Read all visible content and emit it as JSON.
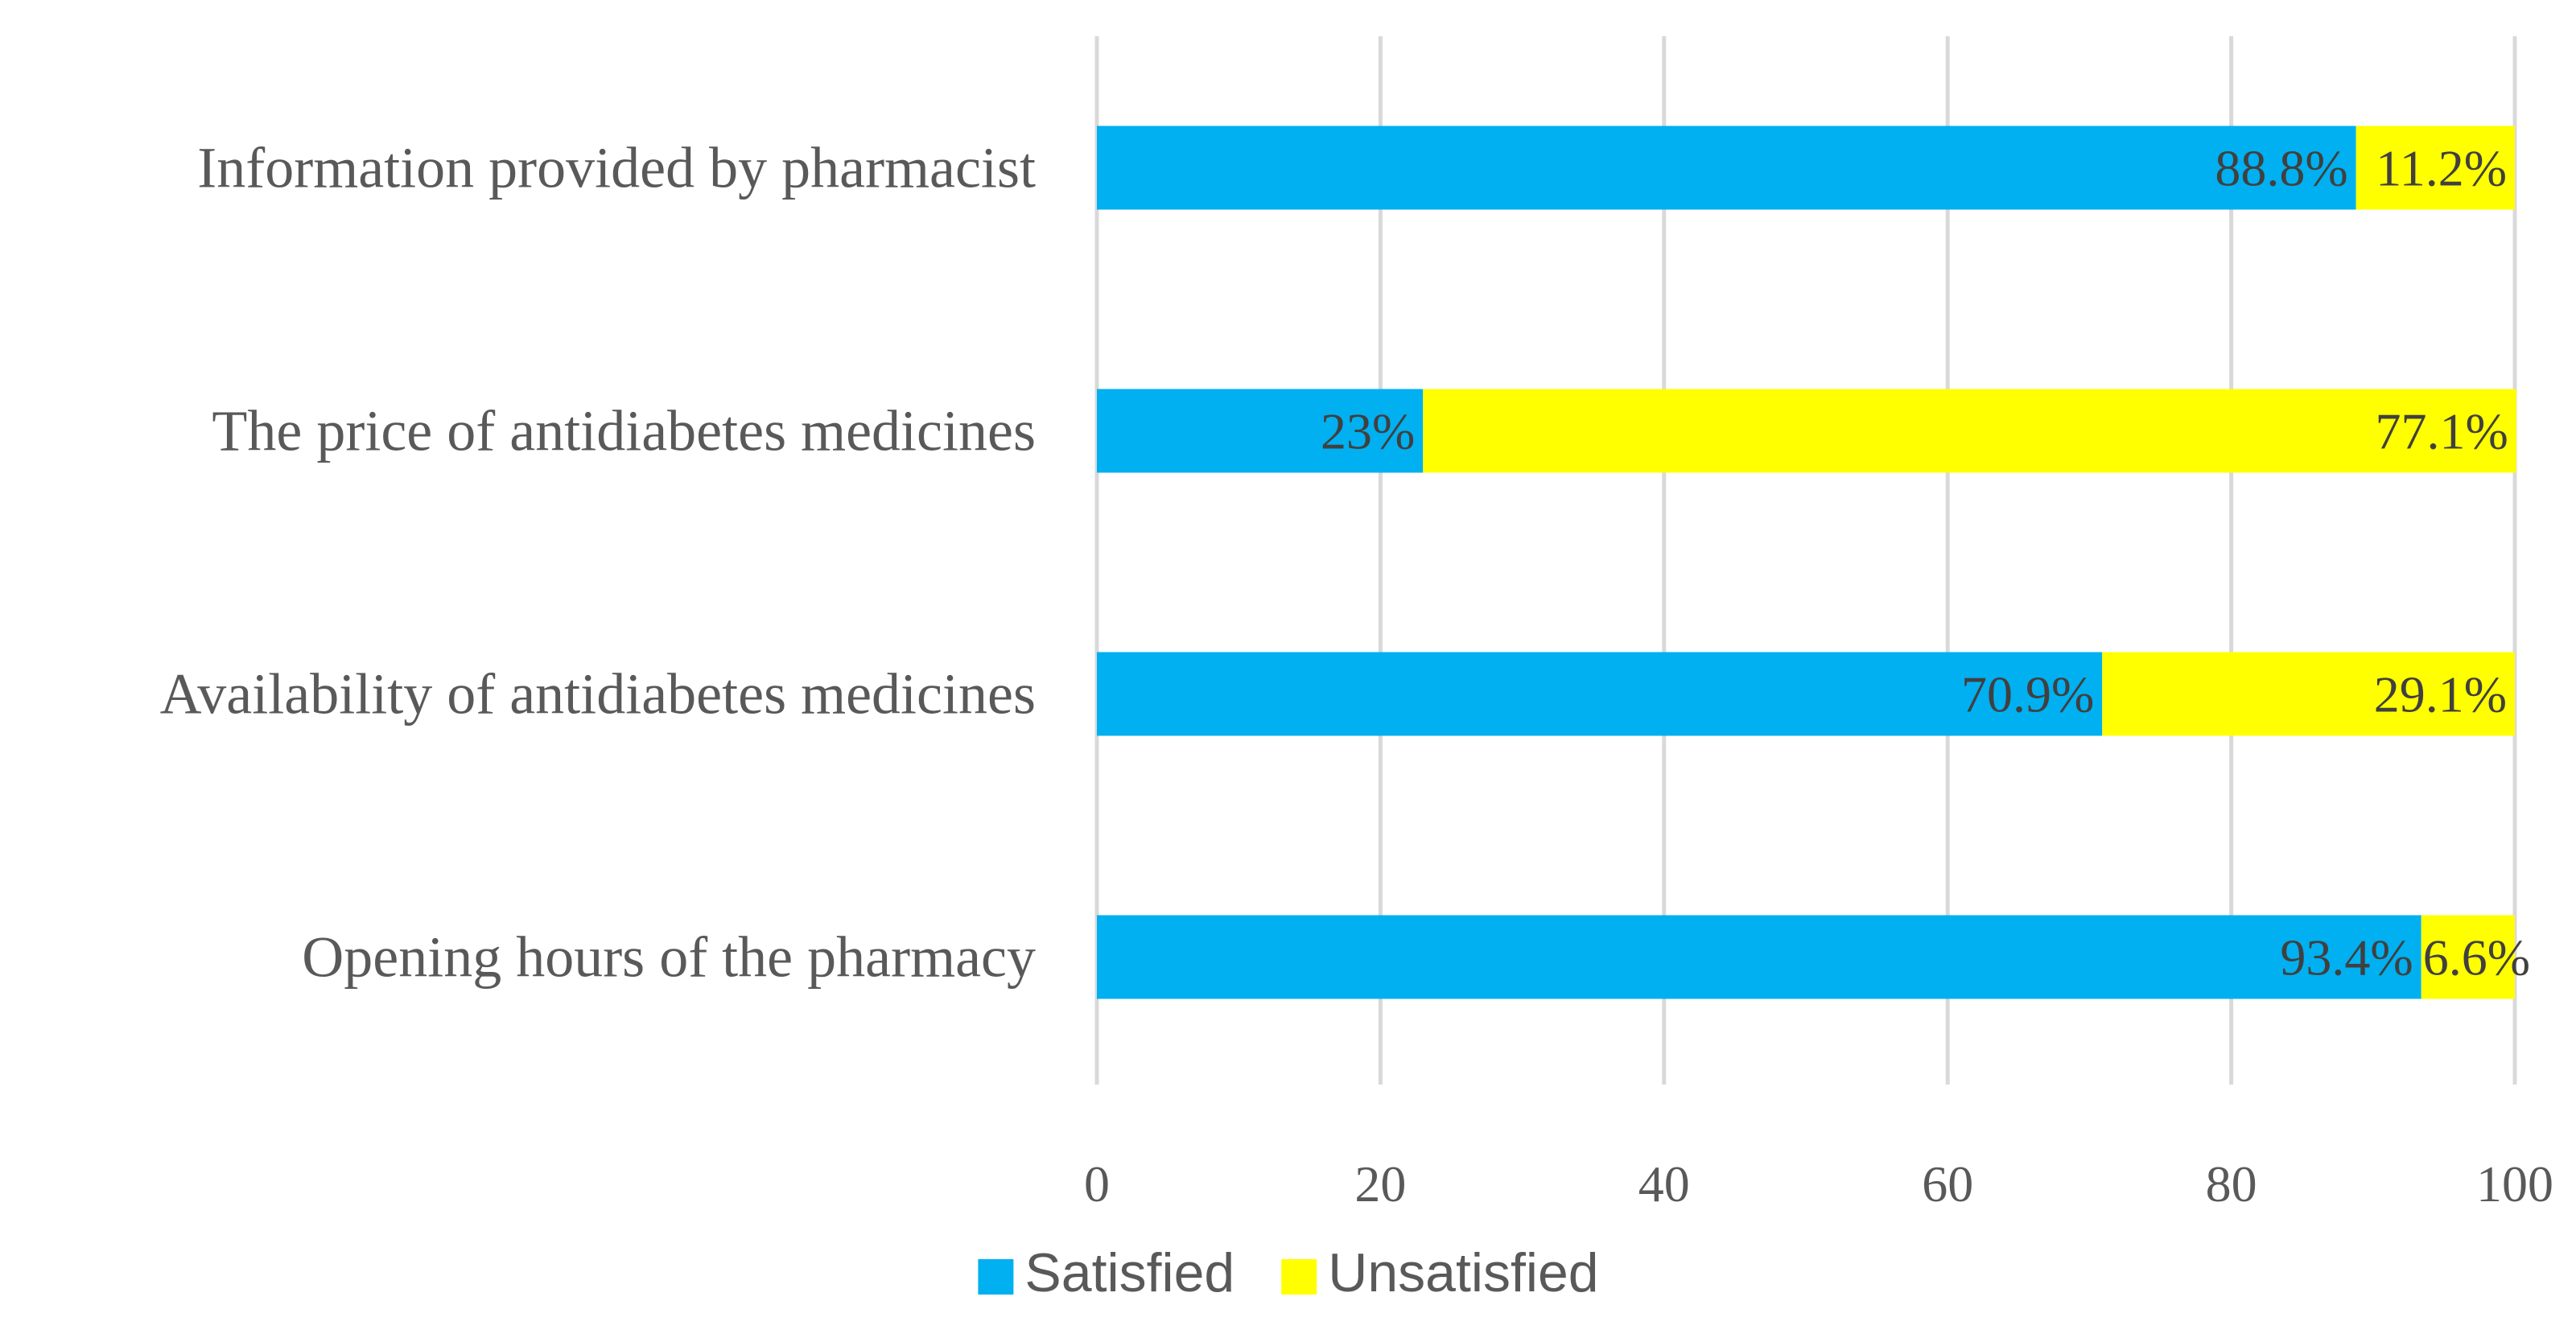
{
  "chart_data": {
    "type": "bar",
    "orientation": "horizontal",
    "stacked": true,
    "categories": [
      "Information provided by pharmacist",
      "The price of antidiabetes medicines",
      "Availability of antidiabetes medicines",
      "Opening hours of the pharmacy"
    ],
    "series": [
      {
        "name": "Satisfied",
        "color": "#00B0F0",
        "values": [
          88.8,
          23,
          70.9,
          93.4
        ],
        "labels": [
          "88.8%",
          "23%",
          "70.9%",
          "93.4%"
        ]
      },
      {
        "name": "Unsatisfied",
        "color": "#FFFF00",
        "values": [
          11.2,
          77.1,
          29.1,
          6.6
        ],
        "labels": [
          "11.2%",
          "77.1%",
          "29.1%",
          "6.6%"
        ]
      }
    ],
    "xlim": [
      0,
      100
    ],
    "xticks": [
      0,
      20,
      40,
      60,
      80,
      100
    ],
    "xtick_labels": [
      "0",
      "20",
      "40",
      "60",
      "80",
      "100"
    ],
    "grid": true,
    "legend_position": "bottom",
    "title": "",
    "xlabel": "",
    "ylabel": ""
  }
}
